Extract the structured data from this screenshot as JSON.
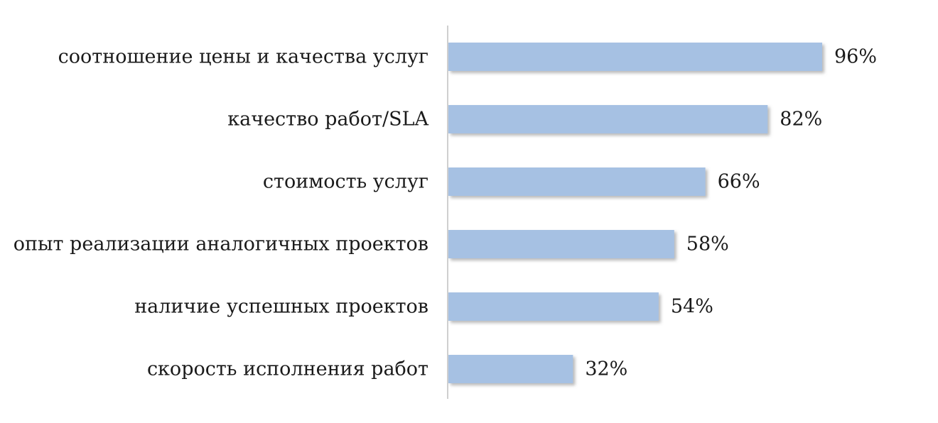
{
  "chart_data": {
    "type": "bar",
    "orientation": "horizontal",
    "categories": [
      "соотношение цены и качества услуг",
      "качество работ/SLA",
      "стоимость услуг",
      "опыт реализации аналогичных проектов",
      "наличие успешных проектов",
      "скорость исполнения работ"
    ],
    "values": [
      96,
      82,
      66,
      58,
      54,
      32
    ],
    "data_labels": [
      "96%",
      "82%",
      "66%",
      "58%",
      "54%",
      "32%"
    ],
    "unit": "%",
    "xlim": [
      0,
      100
    ],
    "grid": false,
    "legend": "none",
    "colors": {
      "bar": "#a6c1e3",
      "bar_shadow": "#7f7f7f",
      "axis": "#bfbfbf",
      "text": "#1a1a1a"
    }
  }
}
